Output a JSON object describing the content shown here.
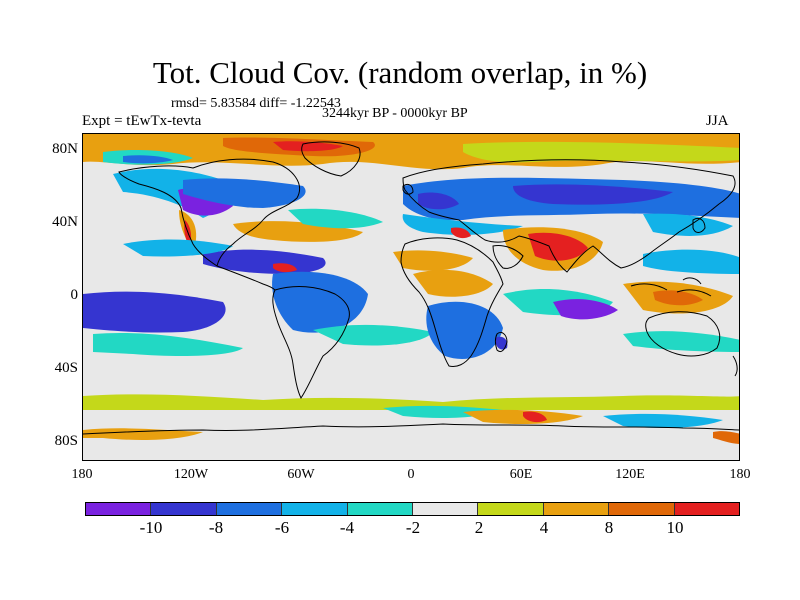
{
  "title": "Tot. Cloud Cov. (random overlap, in %)",
  "stats": "rmsd= 5.83584 diff= -1.22543",
  "subtitle": "3244kyr BP - 0000kyr BP",
  "experiment": "Expt = tEwTx-tevta",
  "season": "JJA",
  "map": {
    "lat_labels": [
      "80N",
      "40N",
      "0",
      "40S",
      "80S"
    ],
    "lon_labels": [
      "180",
      "120W",
      "60W",
      "0",
      "60E",
      "120E",
      "180"
    ],
    "lat_values": [
      80,
      40,
      0,
      -40,
      -80
    ],
    "lon_values": [
      -180,
      -120,
      -60,
      0,
      60,
      120,
      180
    ],
    "projection": "cylindrical equidistant",
    "background_color": "#e8e8e8"
  },
  "colorbar": {
    "labels": [
      "-10",
      "-8",
      "-6",
      "-4",
      "-2",
      "2",
      "4",
      "8",
      "10"
    ],
    "colors": [
      "#7a22e0",
      "#3535d0",
      "#1e6fe0",
      "#12b2e8",
      "#22d8c4",
      "#e8e8e8",
      "#c4d81a",
      "#e8a010",
      "#e06808",
      "#e42020"
    ]
  }
}
